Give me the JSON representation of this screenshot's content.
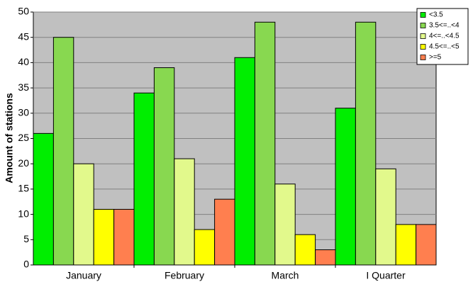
{
  "chart_data": {
    "type": "bar",
    "ylabel": "Amount of stations",
    "categories": [
      "January",
      "February",
      "March",
      "I Quarter"
    ],
    "series": [
      {
        "name": "<3.5",
        "color": "#00ee00",
        "values": [
          26,
          34,
          41,
          31
        ]
      },
      {
        "name": "3.5<=..<4",
        "color": "#88d850",
        "values": [
          45,
          39,
          48,
          48
        ]
      },
      {
        "name": "4<=..<4.5",
        "color": "#e2f98c",
        "values": [
          20,
          21,
          16,
          19
        ]
      },
      {
        "name": "4.5<=..<5",
        "color": "#ffff00",
        "values": [
          11,
          7,
          6,
          8
        ]
      },
      {
        "name": ">=5",
        "color": "#ff7f4f",
        "values": [
          11,
          13,
          3,
          8
        ]
      }
    ],
    "ylim": [
      0,
      50
    ],
    "yticks": [
      0,
      5,
      10,
      15,
      20,
      25,
      30,
      35,
      40,
      45,
      50
    ],
    "grid": true,
    "legend": "top-right"
  }
}
